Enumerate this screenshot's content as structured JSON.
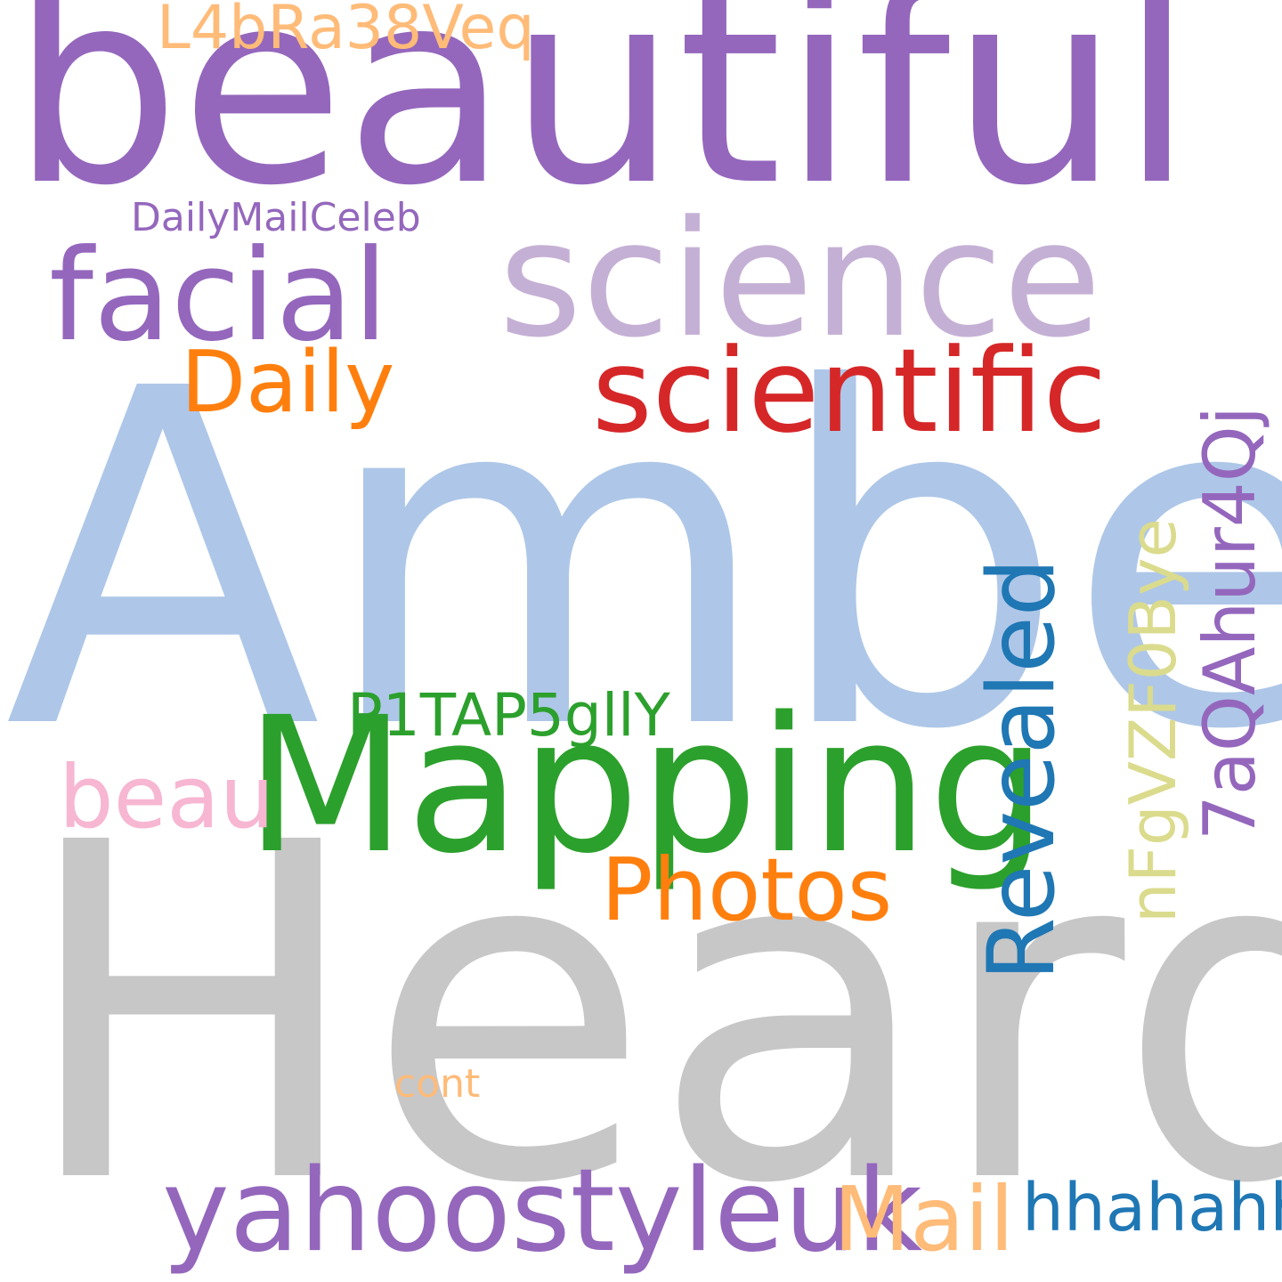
{
  "words": [
    {
      "text": "beautiful",
      "color": "#9467bd"
    },
    {
      "text": "Amber",
      "color": "#aec7e8"
    },
    {
      "text": "Heard",
      "color": "#c7c7c7"
    },
    {
      "text": "science",
      "color": "#c5b0d5"
    },
    {
      "text": "Mapping",
      "color": "#2ca02c"
    },
    {
      "text": "scientific",
      "color": "#d62728"
    },
    {
      "text": "facial",
      "color": "#9467bd"
    },
    {
      "text": "yahoostyleuk",
      "color": "#9467bd"
    },
    {
      "text": "Revealed",
      "color": "#1f77b4"
    },
    {
      "text": "Photos",
      "color": "#ff7f0e"
    },
    {
      "text": "Daily",
      "color": "#ff7f0e"
    },
    {
      "text": "Mail",
      "color": "#ffbb78"
    },
    {
      "text": "beau",
      "color": "#f7b6d2"
    },
    {
      "text": "7aQAhur4Qj",
      "color": "#9467bd"
    },
    {
      "text": "nFgVZF0Bye",
      "color": "#dbdb8d"
    },
    {
      "text": "P1TAP5gllY",
      "color": "#2ca02c"
    },
    {
      "text": "hhahahh",
      "color": "#1f77b4"
    },
    {
      "text": "L4bRa38Veq",
      "color": "#ffbb78"
    },
    {
      "text": "DailyMailCeleb",
      "color": "#9467bd"
    },
    {
      "text": "cont",
      "color": "#ffbb78"
    }
  ]
}
